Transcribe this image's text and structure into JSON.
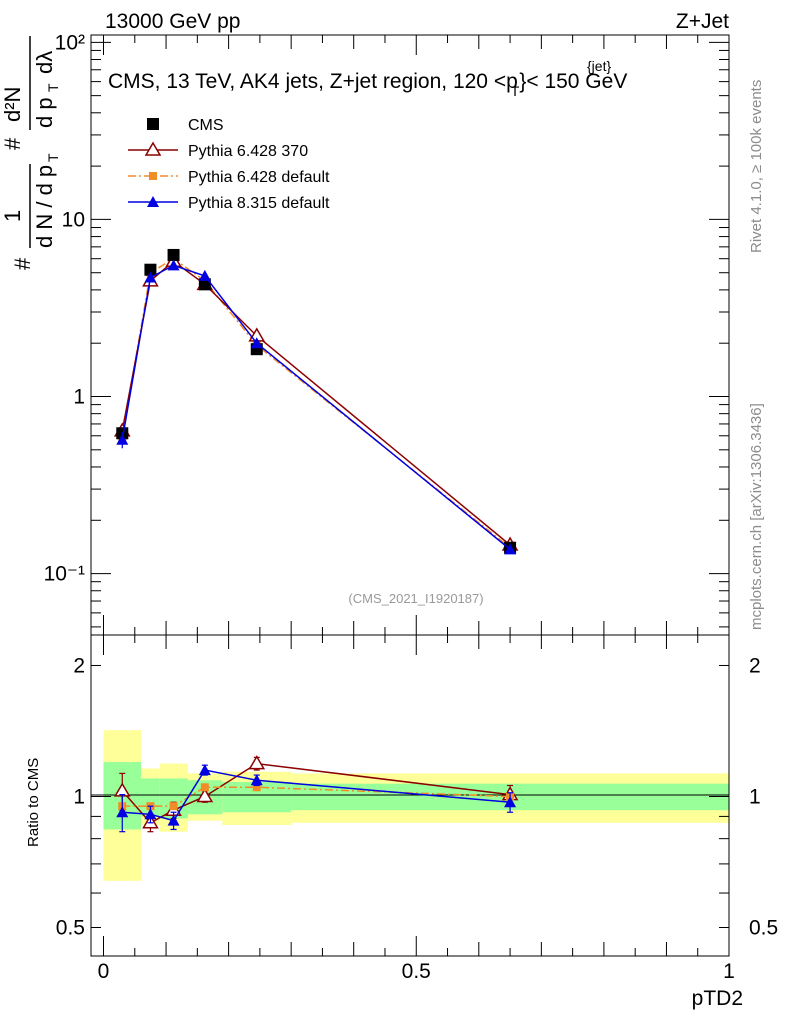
{
  "header": {
    "energy": "13000 GeV pp",
    "process": "Z+Jet",
    "title": "CMS, 13 TeV, AK4 jets, Z+jet region, 120 <p",
    "title_sup": "{jet}",
    "title_sub": "T",
    "title_tail": "}< 150 GeV"
  },
  "side": {
    "rivet": "Rivet 4.1.0, ≥ 100k events",
    "mcplots": "mcplots.cern.ch [arXiv:1306.3436]"
  },
  "analysis_id": "(CMS_2021_I1920187)",
  "ylabel_top": {
    "hash": "#",
    "one": "1",
    "dN": "d N / d p",
    "dN_sub": "T",
    "num": "d²N",
    "den": "d p",
    "den_sub": "T",
    "den_tail": "dλ"
  },
  "ylabel_bottom": "Ratio to CMS",
  "xlabel": "pTD2",
  "legend": [
    {
      "name": "CMS",
      "color": "#000000",
      "marker": "square"
    },
    {
      "name": "Pythia 6.428 370",
      "color": "#8b0000",
      "marker": "open-triangle"
    },
    {
      "name": "Pythia 6.428 default",
      "color": "#f28c28",
      "marker": "small-square"
    },
    {
      "name": "Pythia 8.315 default",
      "color": "#0000e0",
      "marker": "triangle"
    }
  ],
  "colors": {
    "band_inner": "#99ff99",
    "band_outer": "#ffff99",
    "cms": "#000000",
    "p6_370": "#8b0000",
    "p6_def": "#f28c28",
    "p8": "#0000e0"
  },
  "chart_data": {
    "type": "line",
    "main": {
      "yscale": "log",
      "ylim": [
        0.045,
        110
      ],
      "xlim": [
        -0.02,
        1.0
      ],
      "y_ticks": [
        {
          "value": 100,
          "label": "10²"
        },
        {
          "value": 10,
          "label": "10"
        },
        {
          "value": 1,
          "label": "1"
        },
        {
          "value": 0.1,
          "label": "10⁻¹"
        }
      ],
      "x": [
        0.03,
        0.075,
        0.112,
        0.162,
        0.245,
        0.65
      ],
      "series": [
        {
          "name": "CMS",
          "values": [
            0.62,
            5.2,
            6.3,
            4.3,
            1.85,
            0.14
          ]
        },
        {
          "name": "Pythia 6.428 370",
          "values": [
            0.64,
            4.5,
            5.8,
            4.3,
            2.2,
            0.145
          ],
          "err": [
            0.06,
            0.15,
            0.15,
            0.1,
            0.06,
            0.005
          ]
        },
        {
          "name": "Pythia 6.428 default",
          "values": [
            0.59,
            5.0,
            6.0,
            4.5,
            1.95,
            0.14
          ]
        },
        {
          "name": "Pythia 8.315 default",
          "values": [
            0.57,
            4.7,
            5.5,
            4.8,
            2.0,
            0.137
          ],
          "err": [
            0.06,
            0.15,
            0.15,
            0.1,
            0.06,
            0.005
          ]
        }
      ]
    },
    "ratio": {
      "yscale": "log",
      "ylim": [
        0.43,
        2.35
      ],
      "y_ticks": [
        {
          "value": 2,
          "label": "2"
        },
        {
          "value": 1,
          "label": "1"
        },
        {
          "value": 0.5,
          "label": "0.5"
        }
      ],
      "x_ticks": [
        {
          "value": 0,
          "label": "0"
        },
        {
          "value": 0.5,
          "label": "0.5"
        },
        {
          "value": 1,
          "label": "1"
        }
      ],
      "bins": [
        [
          0.0,
          0.06
        ],
        [
          0.06,
          0.09
        ],
        [
          0.09,
          0.135
        ],
        [
          0.135,
          0.19
        ],
        [
          0.19,
          0.3
        ],
        [
          0.3,
          1.0
        ]
      ],
      "band_inner": [
        [
          0.84,
          1.2
        ],
        [
          0.9,
          1.1
        ],
        [
          0.89,
          1.1
        ],
        [
          0.91,
          1.09
        ],
        [
          0.92,
          1.08
        ],
        [
          0.93,
          1.07
        ]
      ],
      "band_outer": [
        [
          0.64,
          1.42
        ],
        [
          0.86,
          1.16
        ],
        [
          0.83,
          1.19
        ],
        [
          0.88,
          1.13
        ],
        [
          0.86,
          1.14
        ],
        [
          0.87,
          1.13
        ]
      ],
      "series": [
        {
          "name": "Pythia 6.428 370",
          "values": [
            1.03,
            0.87,
            0.93,
            1.0,
            1.19,
            1.01
          ],
          "err": [
            0.1,
            0.04,
            0.04,
            0.03,
            0.04,
            0.05
          ]
        },
        {
          "name": "Pythia 6.428 default",
          "values": [
            0.95,
            0.95,
            0.95,
            1.05,
            1.05,
            1.0
          ],
          "err": [
            0.0,
            0.0,
            0.0,
            0.0,
            0.0,
            0.0
          ]
        },
        {
          "name": "Pythia 8.315 default",
          "values": [
            0.92,
            0.91,
            0.88,
            1.15,
            1.09,
            0.97
          ],
          "err": [
            0.09,
            0.04,
            0.04,
            0.03,
            0.03,
            0.05
          ]
        }
      ]
    }
  }
}
